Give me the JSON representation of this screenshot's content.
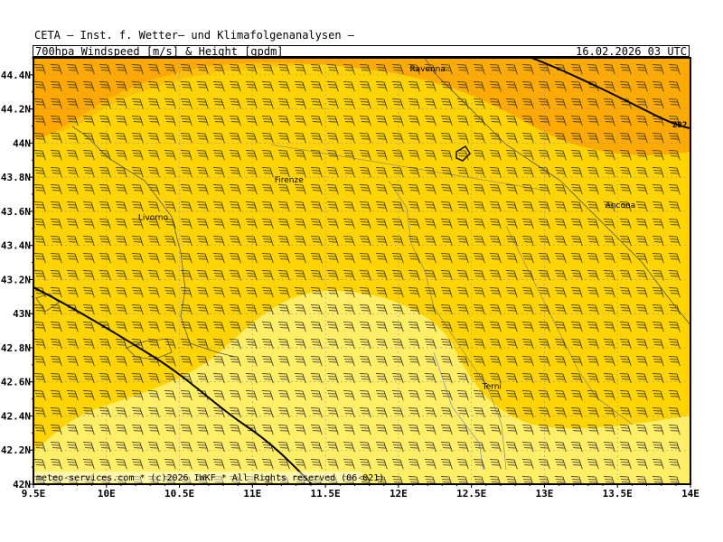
{
  "header": {
    "line1": "CETA – Inst. f. Wetter– und Klimafolgenanalysen –",
    "product": "700hpa_Windspeed_[m/s]_&_Height_[gpdm]",
    "valid_time": "16.02.2026 03 UTC"
  },
  "map": {
    "lon_range": [
      9.5,
      14.0
    ],
    "lat_range": [
      42.0,
      44.5
    ],
    "lat_ticks": [
      {
        "value": 44.4,
        "label": "44.4N"
      },
      {
        "value": 44.2,
        "label": "44.2N"
      },
      {
        "value": 44.0,
        "label": "44N"
      },
      {
        "value": 43.8,
        "label": "43.8N"
      },
      {
        "value": 43.6,
        "label": "43.6N"
      },
      {
        "value": 43.4,
        "label": "43.4N"
      },
      {
        "value": 43.2,
        "label": "43.2N"
      },
      {
        "value": 43.0,
        "label": "43N"
      },
      {
        "value": 42.8,
        "label": "42.8N"
      },
      {
        "value": 42.6,
        "label": "42.6N"
      },
      {
        "value": 42.4,
        "label": "42.4N"
      },
      {
        "value": 42.2,
        "label": "42.2N"
      },
      {
        "value": 42.0,
        "label": "42N"
      }
    ],
    "lon_ticks": [
      {
        "value": 9.5,
        "label": "9.5E"
      },
      {
        "value": 10.0,
        "label": "10E"
      },
      {
        "value": 10.5,
        "label": "10.5E"
      },
      {
        "value": 11.0,
        "label": "11E"
      },
      {
        "value": 11.5,
        "label": "11.5E"
      },
      {
        "value": 12.0,
        "label": "12E"
      },
      {
        "value": 12.5,
        "label": "12.5E"
      },
      {
        "value": 13.0,
        "label": "13E"
      },
      {
        "value": 13.5,
        "label": "13.5E"
      },
      {
        "value": 14.0,
        "label": "14E"
      }
    ],
    "cities": [
      {
        "name": "Ravenna",
        "lon": 12.2,
        "lat": 44.42
      },
      {
        "name": "Firenze",
        "lon": 11.25,
        "lat": 43.77
      },
      {
        "name": "Livorno",
        "lon": 10.32,
        "lat": 43.55
      },
      {
        "name": "Ancona",
        "lon": 13.52,
        "lat": 43.62
      },
      {
        "name": "Terni",
        "lon": 12.64,
        "lat": 42.56
      }
    ],
    "contour_label": "292",
    "colors": {
      "dark_orange": "#ffa500",
      "gold": "#ffd400",
      "light_yellow": "#ffee66",
      "wind_barb": "#333333",
      "contour": "#000000"
    },
    "wind_barbs": "uniform southwesterly barbs on grid"
  },
  "footer": {
    "credit": "meteo-services.com * (c)2026 IWKF * All Rights reserved (06-021)"
  }
}
